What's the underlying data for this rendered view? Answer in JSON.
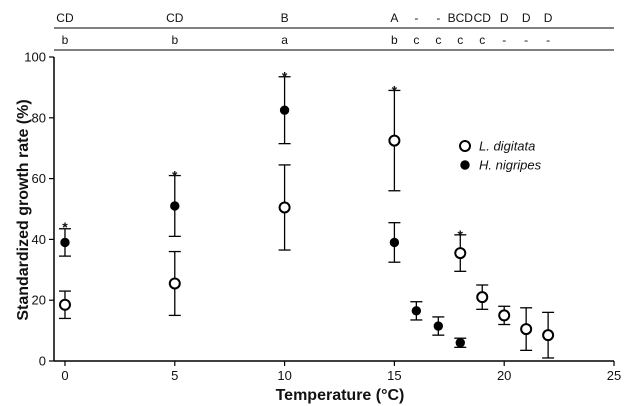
{
  "chart_data": {
    "type": "scatter",
    "title": "",
    "xlabel": "Temperature (°C)",
    "ylabel": "Standardized growth rate (%)",
    "xlim": [
      -0.5,
      25
    ],
    "ylim": [
      0,
      100
    ],
    "x_ticks": [
      "0",
      "5",
      "10",
      "15",
      "20",
      "25"
    ],
    "y_ticks": [
      "0",
      "20",
      "40",
      "60",
      "80",
      "100"
    ],
    "grid": false,
    "legend_position": "right",
    "series": [
      {
        "name": "L. digitata",
        "marker": "open-circle",
        "points": [
          {
            "x": 0,
            "y": 18.5,
            "err": 4.5
          },
          {
            "x": 5,
            "y": 25.5,
            "err": 10.5
          },
          {
            "x": 10,
            "y": 50.5,
            "err": 14
          },
          {
            "x": 15,
            "y": 72.5,
            "err": 16.5
          },
          {
            "x": 18,
            "y": 35.5,
            "err": 6
          },
          {
            "x": 19,
            "y": 21,
            "err": 4
          },
          {
            "x": 20,
            "y": 15,
            "err": 3
          },
          {
            "x": 21,
            "y": 10.5,
            "err": 7
          },
          {
            "x": 22,
            "y": 8.5,
            "err": 7.5
          }
        ]
      },
      {
        "name": "H. nigripes",
        "marker": "filled-circle",
        "points": [
          {
            "x": 0,
            "y": 39,
            "err": 4.5
          },
          {
            "x": 5,
            "y": 51,
            "err": 10
          },
          {
            "x": 10,
            "y": 82.5,
            "err": 11
          },
          {
            "x": 15,
            "y": 39,
            "err": 6.5
          },
          {
            "x": 16,
            "y": 16.5,
            "err": 3
          },
          {
            "x": 17,
            "y": 11.5,
            "err": 3
          },
          {
            "x": 18,
            "y": 6,
            "err": 1.5
          }
        ]
      }
    ],
    "stars": [
      {
        "x": 0,
        "y": 45
      },
      {
        "x": 5,
        "y": 62
      },
      {
        "x": 10,
        "y": 94.5
      },
      {
        "x": 15,
        "y": 90
      },
      {
        "x": 18,
        "y": 42.5
      }
    ],
    "star_text": "*",
    "significance_rows": [
      {
        "row": "top",
        "labels": [
          {
            "x": 0,
            "text": "CD"
          },
          {
            "x": 5,
            "text": "CD"
          },
          {
            "x": 10,
            "text": "B"
          },
          {
            "x": 15,
            "text": "A"
          },
          {
            "x": 16,
            "text": "-"
          },
          {
            "x": 17,
            "text": "-"
          },
          {
            "x": 18,
            "text": "BCD"
          },
          {
            "x": 19,
            "text": "CD"
          },
          {
            "x": 20,
            "text": "D"
          },
          {
            "x": 21,
            "text": "D"
          },
          {
            "x": 22,
            "text": "D"
          }
        ]
      },
      {
        "row": "bottom",
        "labels": [
          {
            "x": 0,
            "text": "b"
          },
          {
            "x": 5,
            "text": "b"
          },
          {
            "x": 10,
            "text": "a"
          },
          {
            "x": 15,
            "text": "b"
          },
          {
            "x": 16,
            "text": "c"
          },
          {
            "x": 17,
            "text": "c"
          },
          {
            "x": 18,
            "text": "c"
          },
          {
            "x": 19,
            "text": "c"
          },
          {
            "x": 20,
            "text": "-"
          },
          {
            "x": 21,
            "text": "-"
          },
          {
            "x": 22,
            "text": "-"
          }
        ]
      }
    ]
  }
}
